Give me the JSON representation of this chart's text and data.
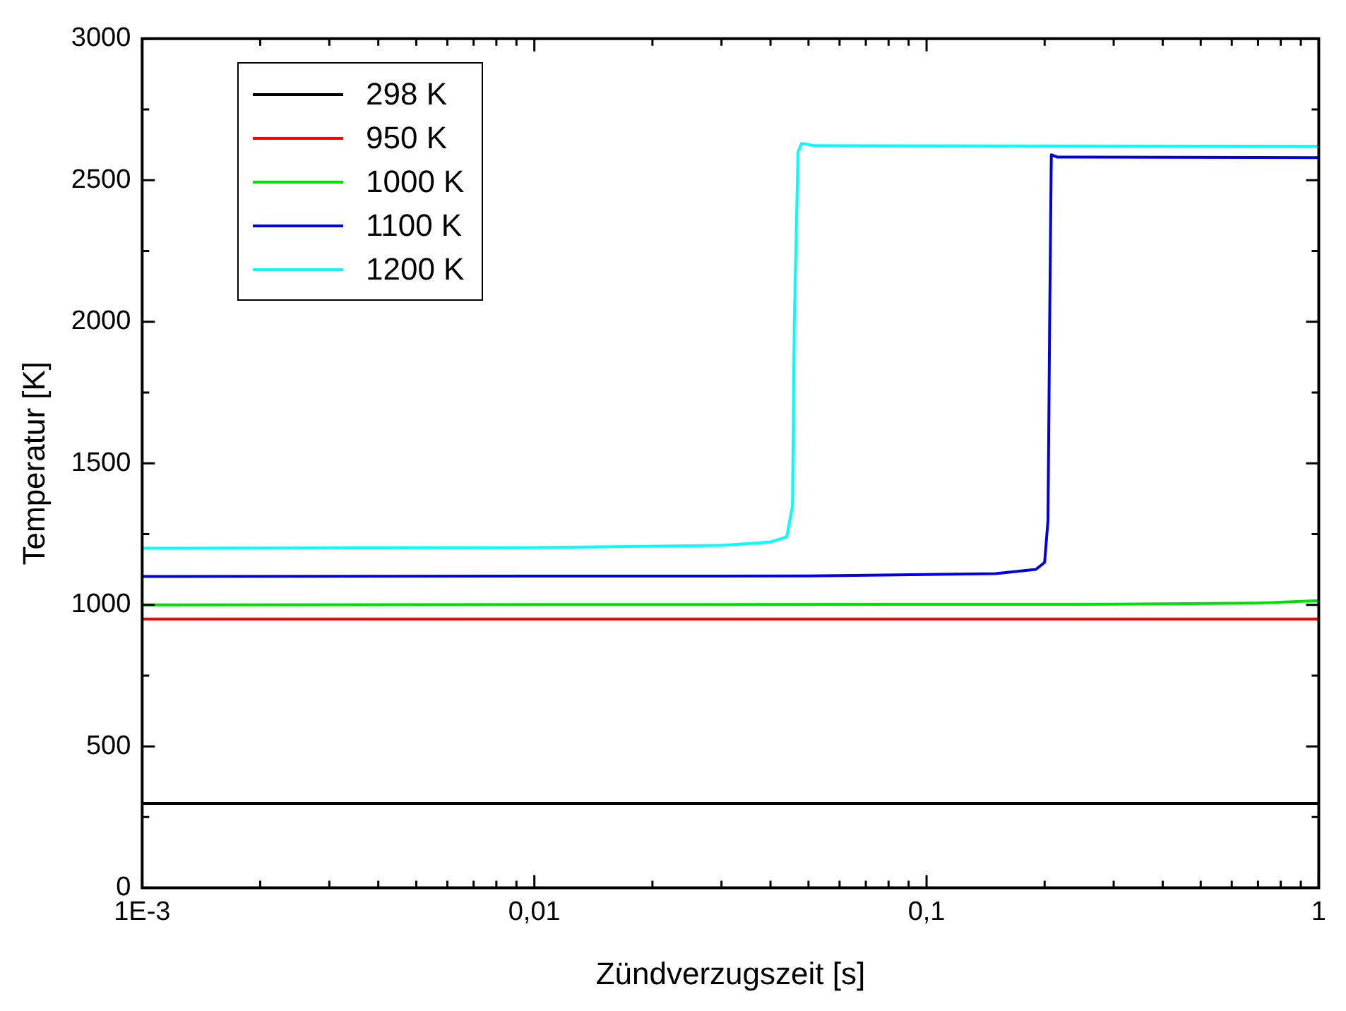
{
  "chart_data": {
    "type": "line",
    "xlabel": "Zündverzugszeit [s]",
    "ylabel": "Temperatur [K]",
    "log": "x",
    "legend": "top left",
    "grid": false,
    "marker": "none",
    "line_style": "solid",
    "xlim": [
      0.001,
      1
    ],
    "ylim": [
      0,
      3000
    ],
    "xticks": [
      {
        "value": 0.001,
        "label": "1E-3"
      },
      {
        "value": 0.002,
        "label": null
      },
      {
        "value": 0.003,
        "label": null
      },
      {
        "value": 0.004,
        "label": null
      },
      {
        "value": 0.005,
        "label": null
      },
      {
        "value": 0.006,
        "label": null
      },
      {
        "value": 0.007,
        "label": null
      },
      {
        "value": 0.008,
        "label": null
      },
      {
        "value": 0.009,
        "label": null
      },
      {
        "value": 0.01,
        "label": "0,01"
      },
      {
        "value": 0.02,
        "label": null
      },
      {
        "value": 0.03,
        "label": null
      },
      {
        "value": 0.04,
        "label": null
      },
      {
        "value": 0.05,
        "label": null
      },
      {
        "value": 0.06,
        "label": null
      },
      {
        "value": 0.07,
        "label": null
      },
      {
        "value": 0.08,
        "label": null
      },
      {
        "value": 0.09,
        "label": null
      },
      {
        "value": 0.1,
        "label": "0,1"
      },
      {
        "value": 0.2,
        "label": null
      },
      {
        "value": 0.3,
        "label": null
      },
      {
        "value": 0.4,
        "label": null
      },
      {
        "value": 0.5,
        "label": null
      },
      {
        "value": 0.6,
        "label": null
      },
      {
        "value": 0.7,
        "label": null
      },
      {
        "value": 0.8,
        "label": null
      },
      {
        "value": 0.9,
        "label": null
      },
      {
        "value": 1,
        "label": "1"
      }
    ],
    "yticks": [
      0,
      {
        "value": 250,
        "label": null
      },
      500,
      {
        "value": 750,
        "label": null
      },
      1000,
      {
        "value": 1250,
        "label": null
      },
      1500,
      {
        "value": 1750,
        "label": null
      },
      2000,
      {
        "value": 2250,
        "label": null
      },
      2500,
      {
        "value": 2750,
        "label": null
      },
      3000
    ],
    "series": [
      {
        "name": "298 K",
        "color": "#000000",
        "x": [
          0.001,
          1
        ],
        "values": [
          298,
          298
        ]
      },
      {
        "name": "950 K",
        "color": "#ff0000",
        "x": [
          0.001,
          1
        ],
        "values": [
          950,
          950
        ]
      },
      {
        "name": "1000 K",
        "color": "#00e000",
        "x": [
          0.001,
          0.3,
          0.7,
          1
        ],
        "values": [
          1000,
          1002,
          1006,
          1015
        ]
      },
      {
        "name": "1100 K",
        "color": "#0000e0",
        "x": [
          0.001,
          0.05,
          0.15,
          0.19,
          0.2,
          0.204,
          0.206,
          0.208,
          0.215,
          1
        ],
        "values": [
          1100,
          1102,
          1110,
          1125,
          1150,
          1300,
          2000,
          2590,
          2582,
          2580
        ]
      },
      {
        "name": "1200 K",
        "color": "#00ffff",
        "x": [
          0.001,
          0.01,
          0.03,
          0.04,
          0.044,
          0.0455,
          0.046,
          0.047,
          0.048,
          0.052,
          1
        ],
        "values": [
          1200,
          1202,
          1210,
          1222,
          1240,
          1350,
          2000,
          2600,
          2630,
          2622,
          2620
        ]
      }
    ]
  }
}
